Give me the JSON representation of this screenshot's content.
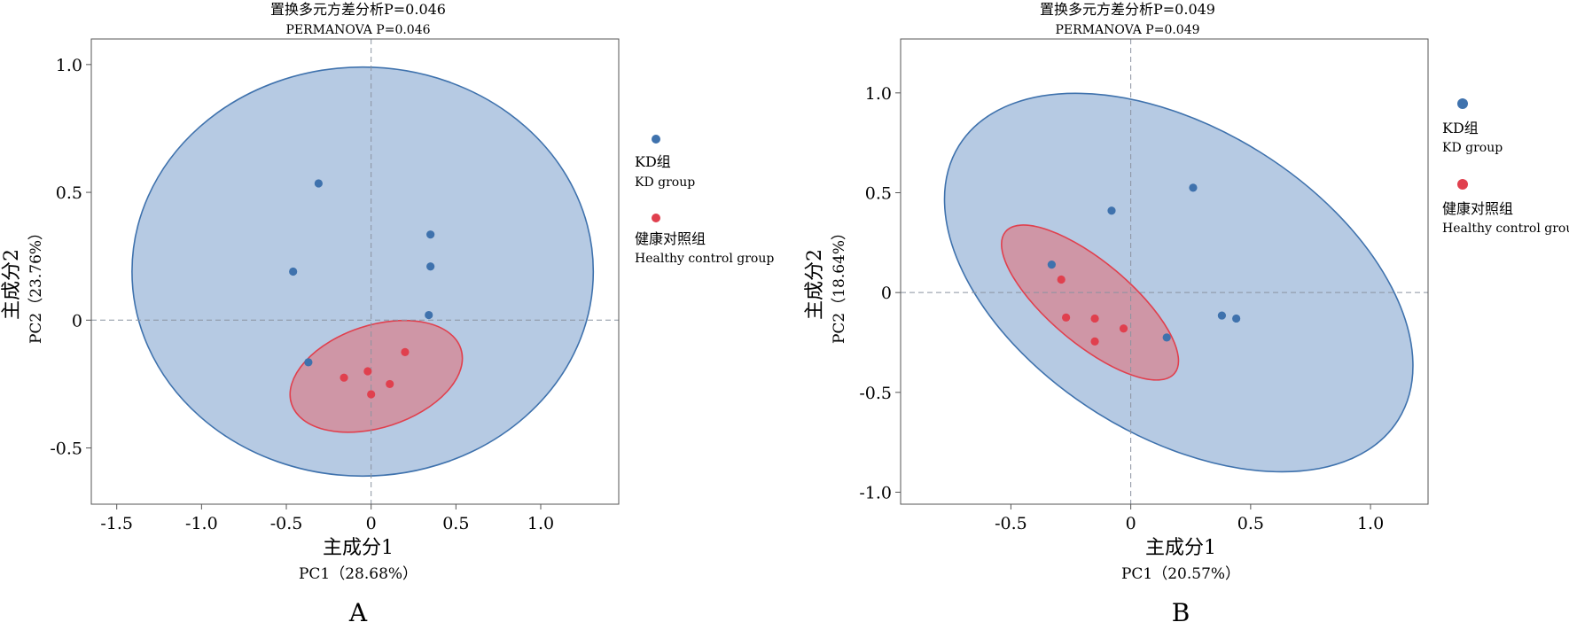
{
  "chart_data": [
    {
      "type": "scatter",
      "panel_label": "A",
      "title": "置换多元方差分析P=0.046",
      "subtitle": "PERMANOVA P=0.046",
      "xlabel": "主成分1",
      "xlabel_en": "PC1（28.68%）",
      "ylabel": "主成分2",
      "ylabel_en": "PC2（23.76%）",
      "xlim": [
        -1.65,
        1.46
      ],
      "ylim": [
        -0.72,
        1.1
      ],
      "xticks": [
        "-1.5",
        "-1.0",
        "-0.5",
        "0",
        "0.5",
        "1.0"
      ],
      "xtick_values": [
        -1.5,
        -1.0,
        -0.5,
        0,
        0.5,
        1.0
      ],
      "yticks": [
        "-0.5",
        "0",
        "0.5",
        "1.0"
      ],
      "ytick_values": [
        -0.5,
        0,
        0.5,
        1.0
      ],
      "legend_position": "right",
      "colors": {
        "kd": "#3f72ad",
        "healthy": "#e0404e",
        "kd_fill": "#a9c1de",
        "healthy_fill": "#d68896"
      },
      "series": [
        {
          "name": "KD组",
          "name_en": "KD group",
          "color": "#3f72ad",
          "points": [
            [
              -0.31,
              0.535
            ],
            [
              -0.46,
              0.19
            ],
            [
              0.35,
              0.335
            ],
            [
              0.35,
              0.21
            ],
            [
              0.34,
              0.02
            ],
            [
              -0.37,
              -0.165
            ]
          ],
          "ellipse": {
            "cx": -0.05,
            "cy": 0.19,
            "rx": 1.36,
            "ry": 0.8,
            "angle": 0
          }
        },
        {
          "name": "健康对照组",
          "name_en": "Healthy control group",
          "color": "#e0404e",
          "points": [
            [
              -0.16,
              -0.225
            ],
            [
              -0.02,
              -0.2
            ],
            [
              0.2,
              -0.125
            ],
            [
              0.11,
              -0.25
            ],
            [
              0,
              -0.29
            ]
          ],
          "ellipse": {
            "cx": 0.03,
            "cy": -0.22,
            "rx": 0.525,
            "ry": 0.2,
            "angle": -18
          }
        }
      ]
    },
    {
      "type": "scatter",
      "panel_label": "B",
      "title": "置换多元方差分析P=0.049",
      "subtitle": "PERMANOVA P=0.049",
      "xlabel": "主成分1",
      "xlabel_en": "PC1（20.57%）",
      "ylabel": "主成分2",
      "ylabel_en": "PC2（18.64%）",
      "xlim": [
        -0.96,
        1.24
      ],
      "ylim": [
        -1.06,
        1.27
      ],
      "xticks": [
        "-0.5",
        "0",
        "0.5",
        "1.0"
      ],
      "xtick_values": [
        -0.5,
        0,
        0.5,
        1.0
      ],
      "yticks": [
        "-1.0",
        "-0.5",
        "0",
        "0.5",
        "1.0"
      ],
      "ytick_values": [
        -1.0,
        -0.5,
        0,
        0.5,
        1.0
      ],
      "legend_position": "right",
      "colors": {
        "kd": "#3f72ad",
        "healthy": "#e0404e",
        "kd_fill": "#a9c1de",
        "healthy_fill": "#d68896"
      },
      "series": [
        {
          "name": "KD组",
          "name_en": "KD group",
          "color": "#3f72ad",
          "points": [
            [
              0.26,
              0.525
            ],
            [
              -0.08,
              0.41
            ],
            [
              0.38,
              -0.115
            ],
            [
              0.44,
              -0.13
            ],
            [
              -0.33,
              0.14
            ],
            [
              0.15,
              -0.225
            ]
          ],
          "ellipse": {
            "cx": 0.2,
            "cy": 0.05,
            "rx": 1.08,
            "ry": 0.77,
            "angle": 32
          }
        },
        {
          "name": "健康对照组",
          "name_en": "Healthy control group",
          "color": "#e0404e",
          "points": [
            [
              -0.29,
              0.065
            ],
            [
              -0.27,
              -0.125
            ],
            [
              -0.15,
              -0.13
            ],
            [
              -0.03,
              -0.18
            ],
            [
              -0.15,
              -0.245
            ]
          ],
          "ellipse": {
            "cx": -0.17,
            "cy": -0.05,
            "rx": 0.46,
            "ry": 0.205,
            "angle": 40
          }
        }
      ]
    }
  ]
}
